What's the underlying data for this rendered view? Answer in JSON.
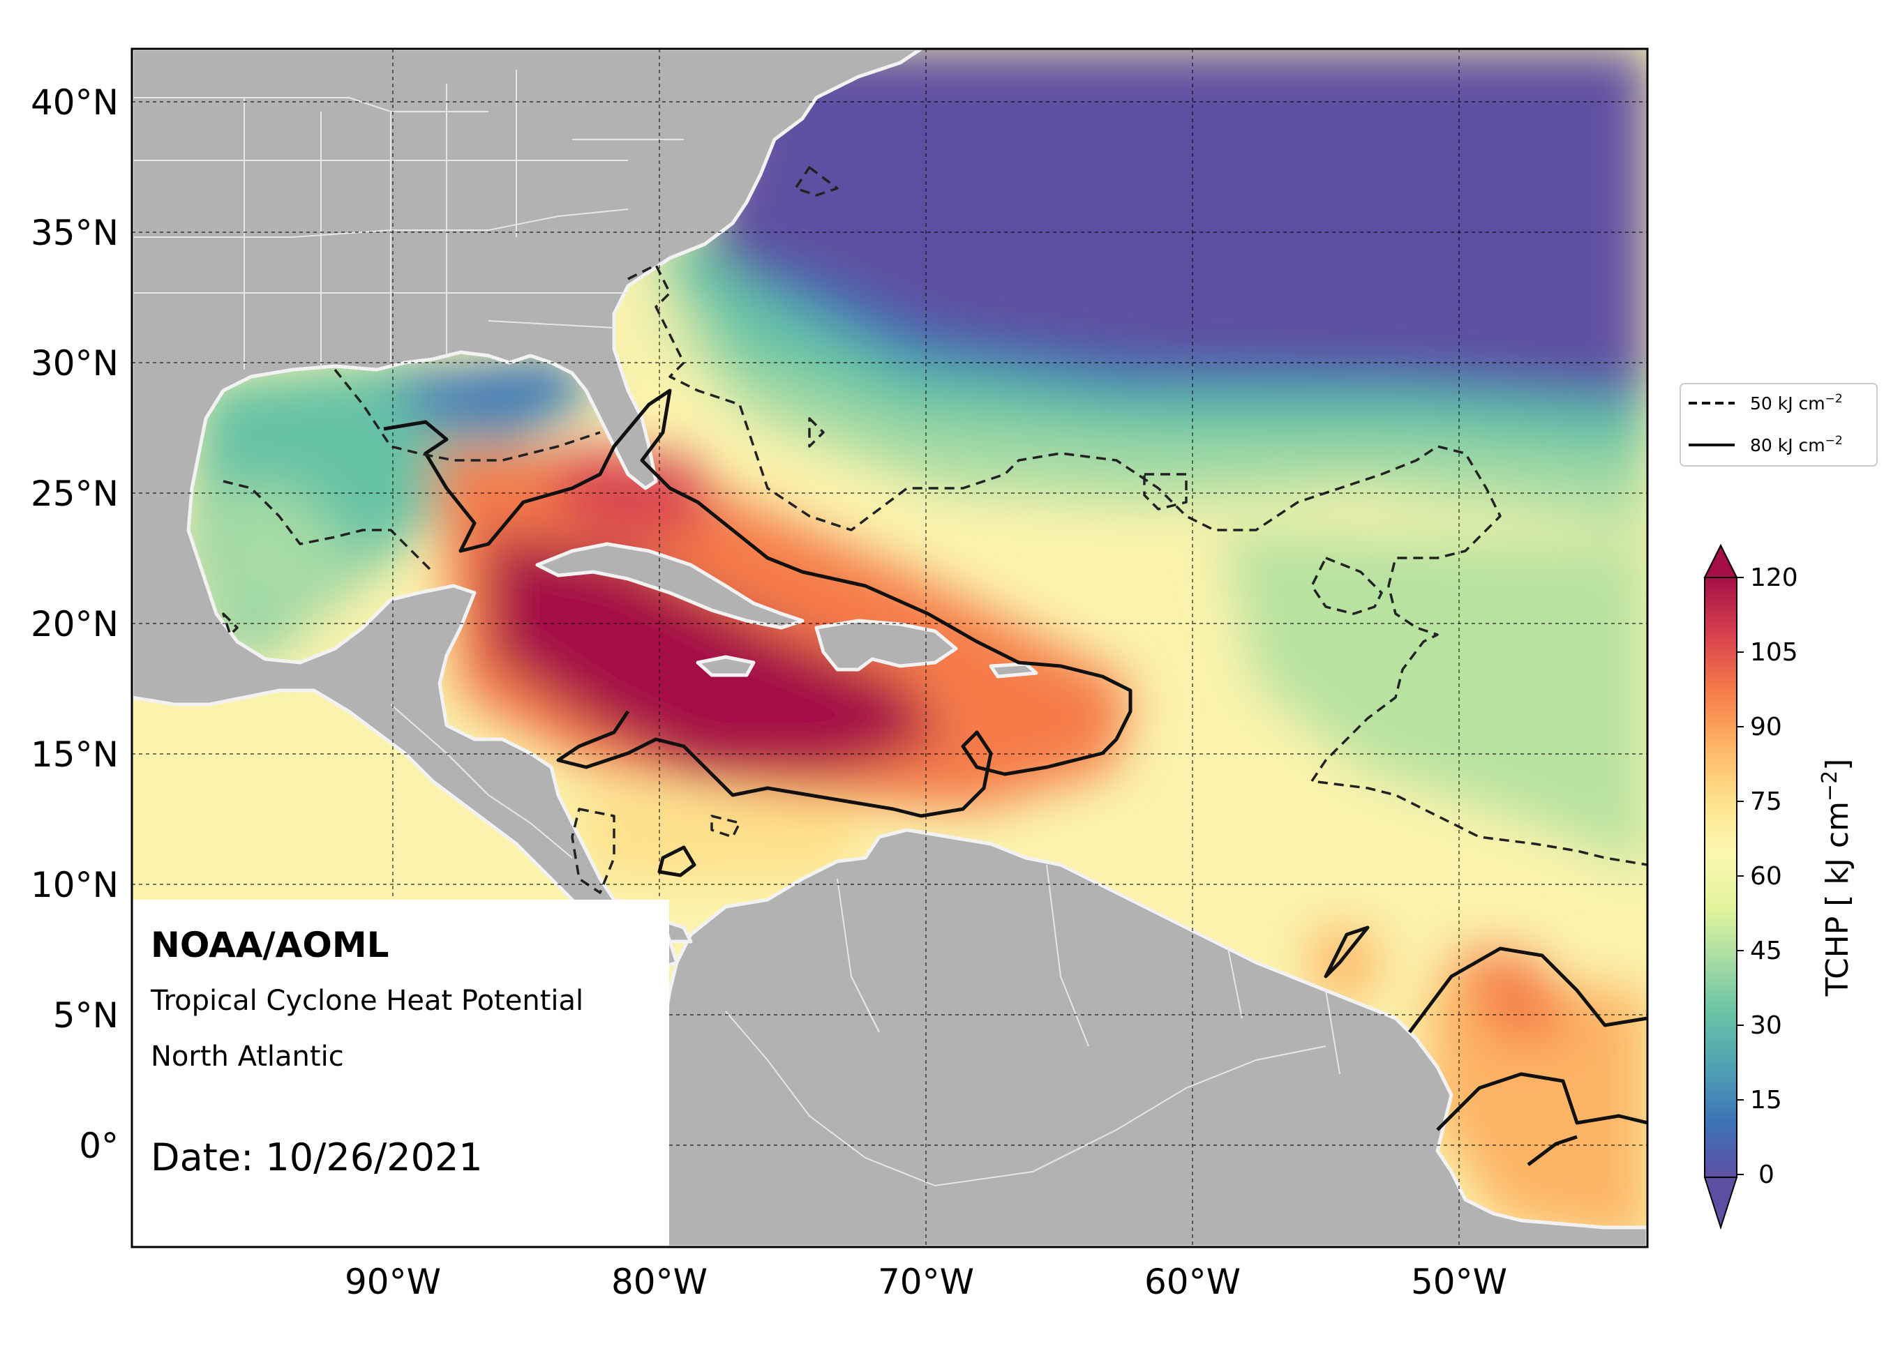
{
  "map": {
    "lat_labels": [
      "40°N",
      "35°N",
      "30°N",
      "25°N",
      "20°N",
      "15°N",
      "10°N",
      "5°N",
      "0°"
    ],
    "lon_labels": [
      "90°W",
      "80°W",
      "70°W",
      "60°W",
      "50°W"
    ],
    "land_color": "#b2b2b2",
    "border_color": "#ffffff"
  },
  "annotation": {
    "org": "NOAA/AOML",
    "product": "Tropical Cyclone Heat Potential",
    "region": "North Atlantic",
    "date": "Date: 10/26/2021"
  },
  "legend": {
    "items": [
      {
        "label": "50 kJ cm",
        "sup": "−2",
        "style": "dashed"
      },
      {
        "label": "80 kJ cm",
        "sup": "−2",
        "style": "solid"
      }
    ]
  },
  "colorbar": {
    "title": "TCHP [ kJ cm",
    "title_sup": "−2",
    "title_end": "]",
    "ticks": [
      "120",
      "105",
      "90",
      "75",
      "60",
      "45",
      "30",
      "15",
      "0"
    ],
    "colors_low_to_high": [
      "#5e4fa2",
      "#3d72b7",
      "#4fa0b4",
      "#66c2a5",
      "#a6dba4",
      "#e3f49c",
      "#fbf8b0",
      "#fee08b",
      "#fdb465",
      "#f57c4a",
      "#d9444f",
      "#a50f47"
    ]
  }
}
